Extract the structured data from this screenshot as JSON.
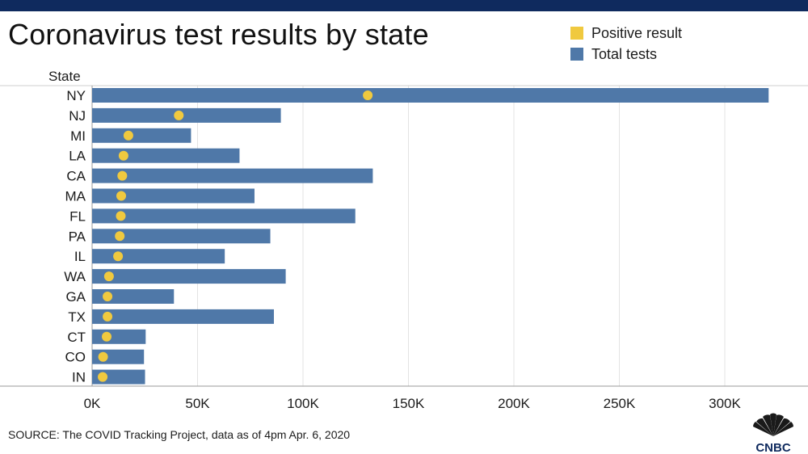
{
  "header": {
    "title": "Coronavirus test results by state"
  },
  "legend": [
    {
      "label": "Positive result",
      "color": "#f0c93f"
    },
    {
      "label": "Total tests",
      "color": "#4f78a8"
    }
  ],
  "footer": {
    "source": "SOURCE: The COVID Tracking Project, data as of 4pm Apr. 6, 2020",
    "brand": "CNBC"
  },
  "chart_data": {
    "type": "bar",
    "orientation": "horizontal",
    "title": "Coronavirus test results by state",
    "ylabel": "State",
    "xlabel": "",
    "xlim": [
      0,
      330000
    ],
    "x_ticks": [
      0,
      50000,
      100000,
      150000,
      200000,
      250000,
      300000
    ],
    "x_tick_labels": [
      "0K",
      "50K",
      "100K",
      "150K",
      "200K",
      "250K",
      "300K"
    ],
    "grid": true,
    "legend_position": "top-right",
    "categories": [
      "NY",
      "NJ",
      "MI",
      "LA",
      "CA",
      "MA",
      "FL",
      "PA",
      "IL",
      "WA",
      "GA",
      "TX",
      "CT",
      "CO",
      "IN"
    ],
    "series": [
      {
        "name": "Total tests",
        "color": "#4f78a8",
        "values": [
          320800,
          89500,
          46900,
          69900,
          133100,
          77000,
          124800,
          84500,
          62900,
          91800,
          38800,
          86200,
          25400,
          24600,
          25100
        ]
      },
      {
        "name": "Positive result",
        "color": "#f0c93f",
        "values": [
          130700,
          41100,
          17200,
          14900,
          14300,
          13800,
          13600,
          13100,
          12300,
          8000,
          7300,
          7300,
          6900,
          5200,
          5000
        ]
      }
    ]
  }
}
